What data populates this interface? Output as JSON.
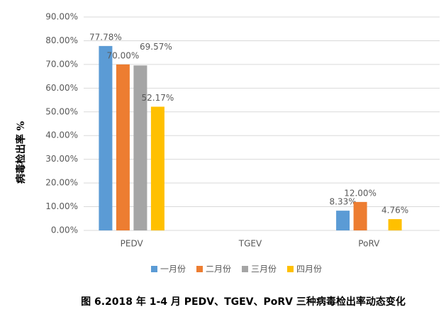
{
  "chart_data": {
    "type": "bar",
    "caption": "图 6.2018 年 1-4 月 PEDV、TGEV、PoRV 三种病毒检出率动态变化",
    "y_label": "病毒检出率 %",
    "categories": [
      "PEDV",
      "TGEV",
      "PoRV"
    ],
    "series": [
      {
        "name": "一月份",
        "color": "#5b9bd5",
        "values": [
          77.78,
          null,
          8.33
        ],
        "value_labels": [
          "77.78%",
          null,
          "8.33%"
        ]
      },
      {
        "name": "二月份",
        "color": "#ed7d31",
        "values": [
          70.0,
          null,
          12.0
        ],
        "value_labels": [
          "70.00%",
          null,
          "12.00%"
        ]
      },
      {
        "name": "三月份",
        "color": "#a5a5a5",
        "values": [
          69.57,
          null,
          null
        ],
        "value_labels": [
          "69.57%",
          null,
          null
        ]
      },
      {
        "name": "四月份",
        "color": "#ffc000",
        "values": [
          52.17,
          null,
          4.76
        ],
        "value_labels": [
          "52.17%",
          null,
          "4.76%"
        ]
      }
    ],
    "ylim": [
      0,
      90
    ],
    "yticks": [
      {
        "value": 0,
        "label": "0.00%"
      },
      {
        "value": 10,
        "label": "10.00%"
      },
      {
        "value": 20,
        "label": "20.00%"
      },
      {
        "value": 30,
        "label": "30.00%"
      },
      {
        "value": 40,
        "label": "40.00%"
      },
      {
        "value": 50,
        "label": "50.00%"
      },
      {
        "value": 60,
        "label": "60.00%"
      },
      {
        "value": 70,
        "label": "70.00%"
      },
      {
        "value": 80,
        "label": "80.00%"
      },
      {
        "value": 90,
        "label": "90.00%"
      }
    ],
    "grid": true
  }
}
